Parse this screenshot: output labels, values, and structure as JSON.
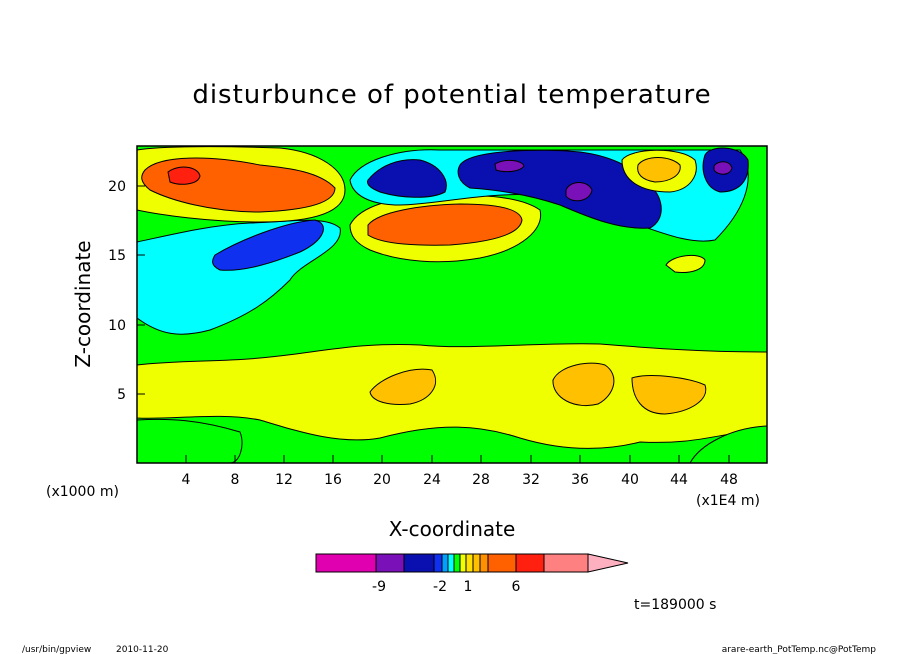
{
  "chart_data": {
    "type": "heatmap",
    "title": "disturbunce of potential temperature",
    "xlabel": "X-coordinate",
    "ylabel": "Z-coordinate",
    "x_units_label": "(x1000 m)",
    "x_scale_label": "(x1E4 m)",
    "x_ticks": [
      "4",
      "8",
      "12",
      "16",
      "20",
      "24",
      "28",
      "32",
      "36",
      "40",
      "44",
      "48"
    ],
    "y_ticks": [
      "5",
      "10",
      "15",
      "20"
    ],
    "xlim": [
      0,
      51
    ],
    "ylim": [
      0,
      23
    ],
    "colorbar": {
      "tick_labels": [
        "-9",
        "-2",
        "1",
        "6"
      ],
      "colors": [
        "#e000b0",
        "#7a10b8",
        "#0a10b0",
        "#1030f0",
        "#00a0ff",
        "#00ffff",
        "#00ff00",
        "#f0ff00",
        "#ffe000",
        "#ffc000",
        "#ff9000",
        "#ff6000",
        "#ff2010",
        "#ff8080",
        "#ffb0c0"
      ]
    },
    "regions": [
      {
        "level": "green",
        "x": [
          0,
          51
        ],
        "y": [
          0,
          23
        ]
      },
      {
        "level": "yellow",
        "x": [
          0,
          51
        ],
        "y": [
          1.5,
          8.5
        ]
      },
      {
        "level": "orange",
        "x": [
          19.5,
          24.5
        ],
        "y": [
          4.5,
          6.5
        ]
      },
      {
        "level": "orange",
        "x": [
          34,
          38.5
        ],
        "y": [
          4.2,
          7
        ]
      },
      {
        "level": "orange",
        "x": [
          40,
          45
        ],
        "y": [
          3.8,
          6.4
        ]
      },
      {
        "level": "cyan",
        "x": [
          0,
          17
        ],
        "y": [
          9.5,
          17.5
        ]
      },
      {
        "level": "blue",
        "x": [
          6,
          15
        ],
        "y": [
          14,
          17.5
        ]
      },
      {
        "level": "yellow",
        "x": [
          0,
          16
        ],
        "y": [
          17.5,
          22.8
        ]
      },
      {
        "level": "red-orange",
        "x": [
          2,
          16
        ],
        "y": [
          18,
          22
        ]
      },
      {
        "level": "red",
        "x": [
          2.5,
          5
        ],
        "y": [
          20.3,
          21.7
        ]
      },
      {
        "level": "yellow",
        "x": [
          18,
          32
        ],
        "y": [
          14.5,
          20
        ]
      },
      {
        "level": "red-orange",
        "x": [
          20,
          30
        ],
        "y": [
          15.5,
          18.5
        ]
      },
      {
        "level": "cyan",
        "x": [
          17,
          50
        ],
        "y": [
          16,
          23
        ]
      },
      {
        "level": "navy",
        "x": [
          18,
          26
        ],
        "y": [
          18.5,
          22.5
        ]
      },
      {
        "level": "navy",
        "x": [
          25,
          43
        ],
        "y": [
          16.5,
          23
        ]
      },
      {
        "level": "purple",
        "x": [
          29,
          31
        ],
        "y": [
          21,
          22
        ]
      },
      {
        "level": "purple",
        "x": [
          35,
          37
        ],
        "y": [
          19,
          20.5
        ]
      },
      {
        "level": "yellow",
        "x": [
          39,
          45
        ],
        "y": [
          20,
          23
        ]
      },
      {
        "level": "navy",
        "x": [
          46,
          49
        ],
        "y": [
          20,
          23
        ]
      }
    ]
  },
  "annotations": {
    "time": "t=189000 s",
    "program": "/usr/bin/gpview",
    "date": "2010-11-20",
    "source": "arare-earth_PotTemp.nc@PotTemp"
  }
}
